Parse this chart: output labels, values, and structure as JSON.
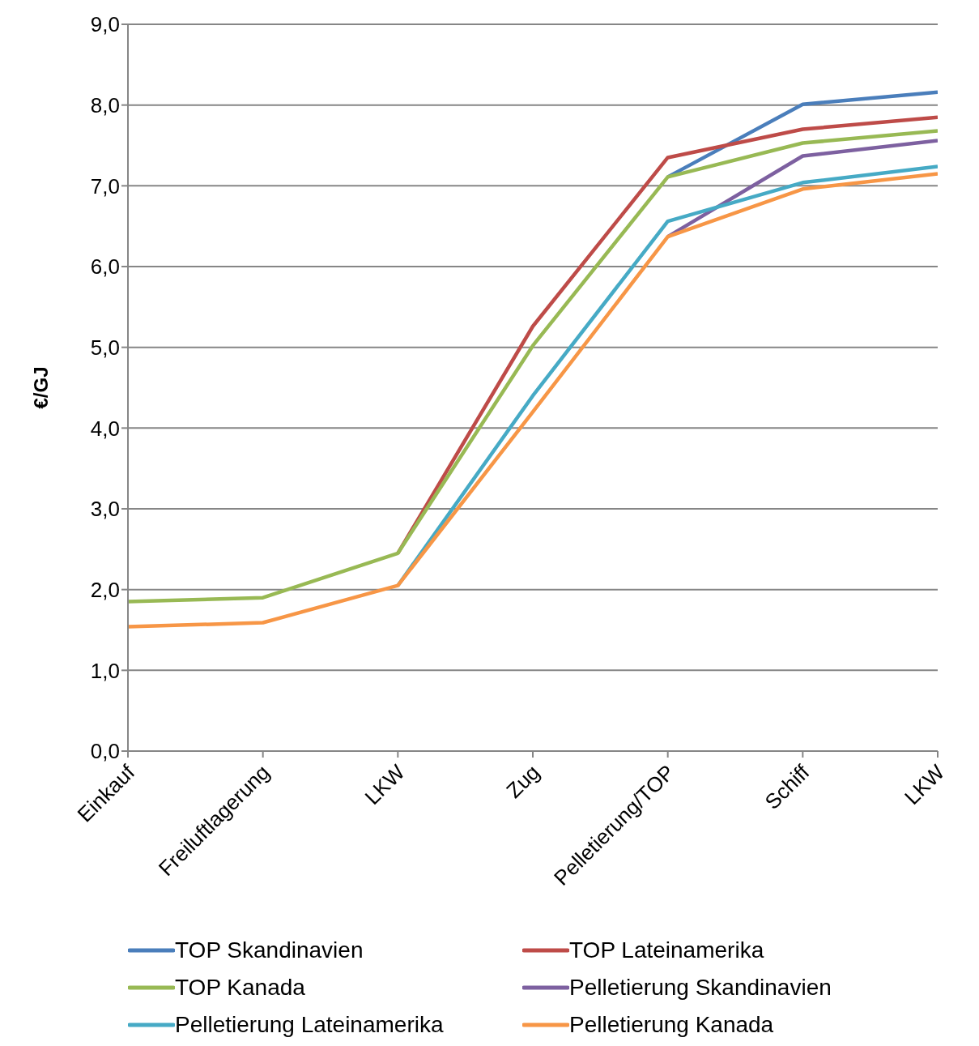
{
  "chart_data": {
    "type": "line",
    "ylabel": "€/GJ",
    "categories": [
      "Einkauf",
      "Freiluftlagerung",
      "LKW",
      "Zug",
      "Pelletierung/TOP",
      "Schiff",
      "LKW"
    ],
    "series": [
      {
        "name": "TOP Skandinavien",
        "color": "#4a7ebb",
        "values": [
          null,
          null,
          null,
          null,
          7.11,
          8.01,
          8.16
        ]
      },
      {
        "name": "TOP Lateinamerika",
        "color": "#be4b48",
        "values": [
          null,
          null,
          2.45,
          5.26,
          7.35,
          7.7,
          7.85
        ]
      },
      {
        "name": "TOP Kanada",
        "color": "#98b954",
        "values": [
          1.85,
          1.9,
          2.45,
          5.02,
          7.11,
          7.53,
          7.68
        ]
      },
      {
        "name": "Pelletierung Skandinavien",
        "color": "#7d60a0",
        "values": [
          null,
          null,
          null,
          null,
          6.37,
          7.37,
          7.56
        ]
      },
      {
        "name": "Pelletierung Lateinamerika",
        "color": "#46aac5",
        "values": [
          null,
          null,
          2.05,
          4.4,
          6.56,
          7.04,
          7.24
        ]
      },
      {
        "name": "Pelletierung Kanada",
        "color": "#f79646",
        "values": [
          1.54,
          1.59,
          2.05,
          4.2,
          6.37,
          6.96,
          7.15
        ]
      }
    ],
    "ylim": [
      0,
      9
    ],
    "yticks": [
      {
        "value": 0,
        "label": "0,0"
      },
      {
        "value": 1,
        "label": "1,0"
      },
      {
        "value": 2,
        "label": "2,0"
      },
      {
        "value": 3,
        "label": "3,0"
      },
      {
        "value": 4,
        "label": "4,0"
      },
      {
        "value": 5,
        "label": "5,0"
      },
      {
        "value": 6,
        "label": "6,0"
      },
      {
        "value": 7,
        "label": "7,0"
      },
      {
        "value": 8,
        "label": "8,0"
      },
      {
        "value": 9,
        "label": "9,0"
      }
    ],
    "grid": "y",
    "legend": "bottom",
    "marker": "none",
    "line_style": "solid"
  }
}
